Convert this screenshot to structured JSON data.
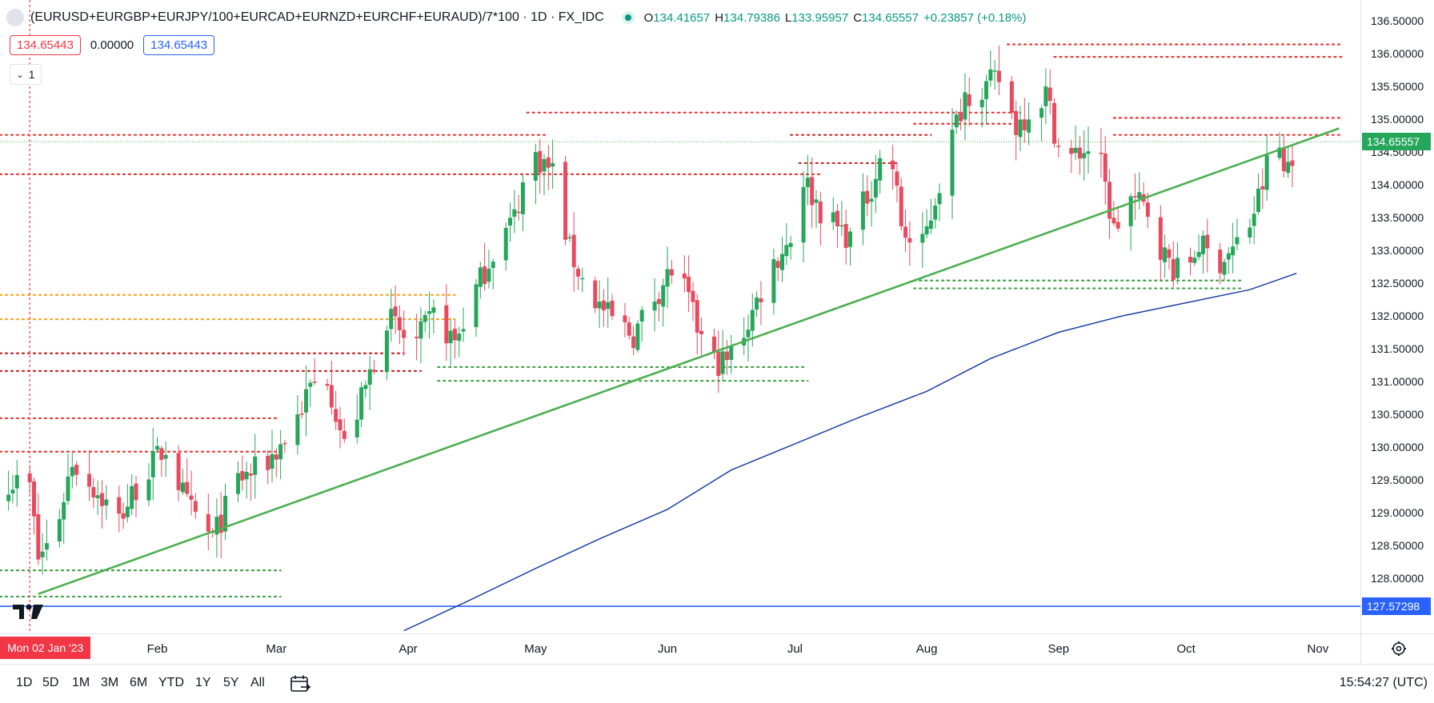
{
  "header": {
    "symbol_title": "(EURUSD+EURGBP+EURJPY/100+EURCAD+EURNZD+EURCHF+EURAUD)/7*100 · 1D · FX_IDC",
    "ohlc": [
      {
        "label": "O",
        "value": "134.41657"
      },
      {
        "label": "H",
        "value": "134.79386"
      },
      {
        "label": "L",
        "value": "133.95957"
      },
      {
        "label": "C",
        "value": "134.65557"
      }
    ],
    "change": "+0.23857 (+0.18%)"
  },
  "indicator_values": [
    "134.65443",
    "0.00000",
    "134.65443"
  ],
  "collapse_count": "1",
  "price_axis": {
    "ticks": [
      "136.50000",
      "136.00000",
      "135.50000",
      "135.00000",
      "134.50000",
      "134.00000",
      "133.50000",
      "133.00000",
      "132.50000",
      "132.00000",
      "131.50000",
      "131.00000",
      "130.50000",
      "130.00000",
      "129.50000",
      "129.00000",
      "128.50000",
      "128.00000"
    ],
    "last_price_label": "134.65557",
    "hline_label": "127.57298"
  },
  "time_axis": {
    "crosshair_label": "Mon 02 Jan '23",
    "months": [
      "Feb",
      "Mar",
      "Apr",
      "May",
      "Jun",
      "Jul",
      "Aug",
      "Sep",
      "Oct",
      "Nov"
    ]
  },
  "toolbar": {
    "ranges": [
      "1D",
      "5D",
      "1M",
      "3M",
      "6M",
      "YTD",
      "1Y",
      "5Y",
      "All"
    ],
    "clock": "15:54:27 (UTC)"
  },
  "colors": {
    "up": "#26a65b",
    "down": "#e84a5f",
    "trendline": "#4caf50",
    "moving_average": "#1e3fa3",
    "hline": "#2962ff",
    "crosshair": "#f23645"
  },
  "chart_data": {
    "type": "candlestick",
    "title": "(EURUSD+EURGBP+EURJPY/100+EURCAD+EURNZD+EURCHF+EURAUD)/7*100 · 1D · FX_IDC",
    "y_range": [
      127.2,
      136.9
    ],
    "x_range": [
      "2022-12-26",
      "2023-11-11"
    ],
    "scale": "linear",
    "grid": false,
    "last_close": 134.65557,
    "horizontal_line": 127.57298,
    "path": [
      [
        "2022-12-28",
        129.5
      ],
      [
        "2023-01-02",
        129.4
      ],
      [
        "2023-01-04",
        128.3
      ],
      [
        "2023-01-08",
        128.7
      ],
      [
        "2023-01-12",
        129.8
      ],
      [
        "2023-01-18",
        129.3
      ],
      [
        "2023-01-23",
        128.9
      ],
      [
        "2023-01-28",
        129.5
      ],
      [
        "2023-02-03",
        130.0
      ],
      [
        "2023-02-08",
        129.1
      ],
      [
        "2023-02-14",
        128.6
      ],
      [
        "2023-02-20",
        129.5
      ],
      [
        "2023-02-26",
        129.7
      ],
      [
        "2023-03-04",
        130.2
      ],
      [
        "2023-03-09",
        130.9
      ],
      [
        "2023-03-13",
        131.1
      ],
      [
        "2023-03-17",
        130.0
      ],
      [
        "2023-03-22",
        130.9
      ],
      [
        "2023-03-27",
        132.0
      ],
      [
        "2023-04-02",
        131.5
      ],
      [
        "2023-04-07",
        132.0
      ],
      [
        "2023-04-12",
        131.6
      ],
      [
        "2023-04-17",
        132.4
      ],
      [
        "2023-04-21",
        133.0
      ],
      [
        "2023-04-26",
        133.5
      ],
      [
        "2023-04-30",
        134.5
      ],
      [
        "2023-05-05",
        134.2
      ],
      [
        "2023-05-09",
        133.0
      ],
      [
        "2023-05-13",
        132.4
      ],
      [
        "2023-05-18",
        132.0
      ],
      [
        "2023-05-24",
        131.7
      ],
      [
        "2023-05-29",
        132.3
      ],
      [
        "2023-06-03",
        132.8
      ],
      [
        "2023-06-07",
        132.0
      ],
      [
        "2023-06-11",
        131.3
      ],
      [
        "2023-06-15",
        131.3
      ],
      [
        "2023-06-20",
        131.9
      ],
      [
        "2023-06-25",
        132.7
      ],
      [
        "2023-06-30",
        133.2
      ],
      [
        "2023-07-03",
        134.1
      ],
      [
        "2023-07-08",
        133.5
      ],
      [
        "2023-07-14",
        133.2
      ],
      [
        "2023-07-19",
        134.0
      ],
      [
        "2023-07-23",
        134.7
      ],
      [
        "2023-07-26",
        133.4
      ],
      [
        "2023-07-30",
        132.8
      ],
      [
        "2023-08-03",
        133.8
      ],
      [
        "2023-08-06",
        134.5
      ],
      [
        "2023-08-10",
        135.4
      ],
      [
        "2023-08-15",
        135.5
      ],
      [
        "2023-08-18",
        135.6
      ],
      [
        "2023-08-22",
        134.9
      ],
      [
        "2023-08-26",
        135.2
      ],
      [
        "2023-08-29",
        135.4
      ],
      [
        "2023-09-02",
        134.3
      ],
      [
        "2023-09-06",
        134.5
      ],
      [
        "2023-09-10",
        134.6
      ],
      [
        "2023-09-14",
        133.3
      ],
      [
        "2023-09-18",
        133.8
      ],
      [
        "2023-09-22",
        133.6
      ],
      [
        "2023-09-26",
        132.9
      ],
      [
        "2023-09-30",
        132.6
      ],
      [
        "2023-10-04",
        133.1
      ],
      [
        "2023-10-08",
        132.8
      ],
      [
        "2023-10-12",
        133.0
      ],
      [
        "2023-10-16",
        133.4
      ],
      [
        "2023-10-19",
        134.0
      ],
      [
        "2023-10-22",
        134.9
      ],
      [
        "2023-10-24",
        134.2
      ],
      [
        "2023-10-26",
        134.5
      ]
    ],
    "moving_average": [
      [
        "2023-03-31",
        127.2
      ],
      [
        "2023-04-15",
        127.65
      ],
      [
        "2023-05-01",
        128.15
      ],
      [
        "2023-05-16",
        128.6
      ],
      [
        "2023-06-01",
        129.05
      ],
      [
        "2023-06-16",
        129.65
      ],
      [
        "2023-07-01",
        130.05
      ],
      [
        "2023-07-16",
        130.45
      ],
      [
        "2023-08-01",
        130.85
      ],
      [
        "2023-08-16",
        131.35
      ],
      [
        "2023-09-01",
        131.75
      ],
      [
        "2023-09-16",
        132.0
      ],
      [
        "2023-10-01",
        132.2
      ],
      [
        "2023-10-16",
        132.4
      ],
      [
        "2023-10-27",
        132.65
      ]
    ],
    "trendline": {
      "from": [
        "2023-01-04",
        127.76
      ],
      "to": [
        "2023-11-06",
        134.86
      ]
    },
    "levels": [
      {
        "price": 134.76,
        "from": "2022-12-26",
        "to": "2023-05-04",
        "color": "#e53935"
      },
      {
        "price": 134.16,
        "from": "2022-12-26",
        "to": "2023-07-07",
        "color": "#e53935"
      },
      {
        "price": 131.43,
        "from": "2022-12-26",
        "to": "2023-03-31",
        "color": "#c62828"
      },
      {
        "price": 131.16,
        "from": "2022-12-26",
        "to": "2023-04-04",
        "color": "#c62828"
      },
      {
        "price": 130.44,
        "from": "2022-12-26",
        "to": "2023-03-01",
        "color": "#e53935"
      },
      {
        "price": 129.93,
        "from": "2022-12-26",
        "to": "2023-03-01",
        "color": "#e53935"
      },
      {
        "price": 132.32,
        "from": "2022-12-26",
        "to": "2023-04-12",
        "color": "#f6a623"
      },
      {
        "price": 131.95,
        "from": "2022-12-26",
        "to": "2023-04-12",
        "color": "#f6a623"
      },
      {
        "price": 128.12,
        "from": "2022-12-26",
        "to": "2023-03-02",
        "color": "#43a047"
      },
      {
        "price": 127.72,
        "from": "2022-12-26",
        "to": "2023-03-02",
        "color": "#43a047"
      },
      {
        "price": 135.1,
        "from": "2023-04-29",
        "to": "2023-08-23",
        "color": "#e53935"
      },
      {
        "price": 134.93,
        "from": "2023-07-29",
        "to": "2023-08-23",
        "color": "#e53935"
      },
      {
        "price": 134.76,
        "from": "2023-06-30",
        "to": "2023-08-02",
        "color": "#c62828"
      },
      {
        "price": 134.33,
        "from": "2023-07-02",
        "to": "2023-07-25",
        "color": "#c62828"
      },
      {
        "price": 136.14,
        "from": "2023-08-20",
        "to": "2023-11-07",
        "color": "#e53935"
      },
      {
        "price": 135.95,
        "from": "2023-08-31",
        "to": "2023-11-07",
        "color": "#e53935"
      },
      {
        "price": 135.02,
        "from": "2023-09-14",
        "to": "2023-11-07",
        "color": "#e53935"
      },
      {
        "price": 134.76,
        "from": "2023-09-14",
        "to": "2023-11-07",
        "color": "#e53935"
      },
      {
        "price": 131.22,
        "from": "2023-04-08",
        "to": "2023-07-03",
        "color": "#43a047"
      },
      {
        "price": 131.01,
        "from": "2023-04-08",
        "to": "2023-07-04",
        "color": "#43a047"
      },
      {
        "price": 132.54,
        "from": "2023-07-29",
        "to": "2023-10-14",
        "color": "#43a047"
      },
      {
        "price": 132.42,
        "from": "2023-07-29",
        "to": "2023-10-14",
        "color": "#43a047"
      }
    ]
  }
}
